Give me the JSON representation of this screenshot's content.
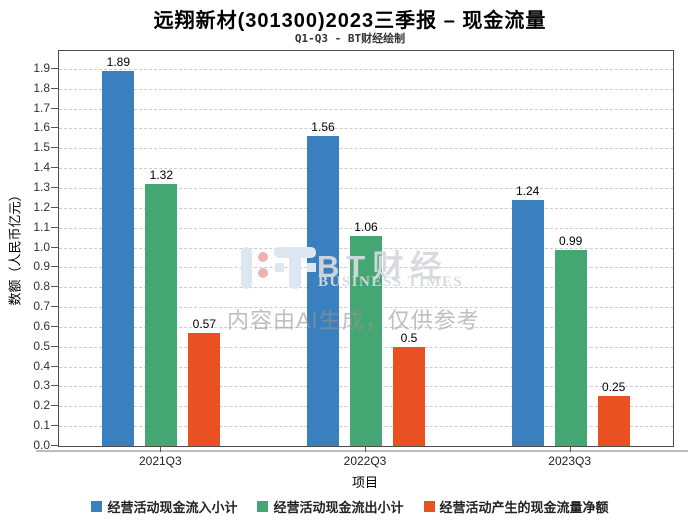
{
  "title": "远翔新材(301300)2023三季报 – 现金流量",
  "subtitle": "Q1-Q3 - BT财经绘制",
  "watermark": {
    "brand": "BT财经",
    "brand_sub": "BUSINESS TIMES",
    "ai_note": "内容由AI生成，仅供参考"
  },
  "colors": {
    "series_blue": "#3a80be",
    "series_green": "#44a673",
    "series_orange": "#e95123",
    "frame": "#4d4d4d",
    "gridline": "#cccccc"
  },
  "chart_data": {
    "type": "bar",
    "categories": [
      "2021Q3",
      "2022Q3",
      "2023Q3"
    ],
    "series": [
      {
        "name": "经营活动现金流入小计",
        "color": "#3a80be",
        "values": [
          1.89,
          1.56,
          1.24
        ],
        "labels": [
          "1.89",
          "1.56",
          "1.24"
        ]
      },
      {
        "name": "经营活动现金流出小计",
        "color": "#44a673",
        "values": [
          1.32,
          1.06,
          0.99
        ],
        "labels": [
          "1.32",
          "1.06",
          "0.99"
        ]
      },
      {
        "name": "经营活动产生的现金流量净额",
        "color": "#e95123",
        "values": [
          0.57,
          0.5,
          0.25
        ],
        "labels": [
          "0.57",
          "0.5",
          "0.25"
        ]
      }
    ],
    "xlabel": "项目",
    "ylabel": "数额（人民币亿元）",
    "ylim": [
      0,
      1.99
    ],
    "ytick_step": 0.1,
    "ytick_max": 1.9,
    "grid": true,
    "legend_position": "bottom"
  }
}
